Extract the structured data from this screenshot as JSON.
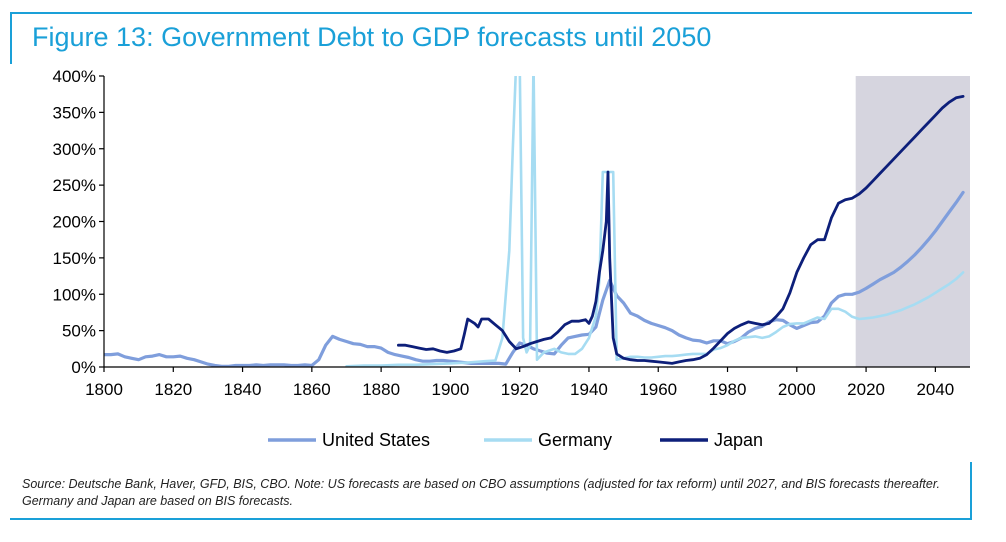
{
  "title": "Figure 13: Government Debt to GDP forecasts until 2050",
  "source_note": "Source: Deutsche Bank, Haver, GFD, BIS, CBO. Note: US forecasts are based on CBO assumptions (adjusted for tax reform) until 2027, and BIS forecasts thereafter. Germany and Japan are based on BIS forecasts.",
  "colors": {
    "accent": "#1aa0d8",
    "united_states": "#7f9edc",
    "germany": "#a6dcf2",
    "japan": "#0d1f7a",
    "forecast_shade": "#d6d5df"
  },
  "chart_data": {
    "type": "line",
    "title": "Figure 13: Government Debt to GDP forecasts until 2050",
    "xlabel": "",
    "ylabel": "",
    "xlim": [
      1800,
      2050
    ],
    "ylim": [
      0,
      400
    ],
    "x_ticks": [
      1800,
      1820,
      1840,
      1860,
      1880,
      1900,
      1920,
      1940,
      1960,
      1980,
      2000,
      2020,
      2040
    ],
    "y_ticks": [
      "0%",
      "50%",
      "100%",
      "150%",
      "200%",
      "250%",
      "300%",
      "350%",
      "400%"
    ],
    "y_tick_values": [
      0,
      50,
      100,
      150,
      200,
      250,
      300,
      350,
      400
    ],
    "grid": false,
    "legend_position": "bottom",
    "forecast_region": [
      2017,
      2050
    ],
    "series": [
      {
        "name": "United States",
        "color": "#7f9edc",
        "points": [
          [
            1800,
            17
          ],
          [
            1802,
            17
          ],
          [
            1804,
            18
          ],
          [
            1806,
            14
          ],
          [
            1808,
            12
          ],
          [
            1810,
            10
          ],
          [
            1812,
            14
          ],
          [
            1814,
            15
          ],
          [
            1816,
            17
          ],
          [
            1818,
            14
          ],
          [
            1820,
            14
          ],
          [
            1822,
            15
          ],
          [
            1824,
            12
          ],
          [
            1826,
            10
          ],
          [
            1828,
            7
          ],
          [
            1830,
            4
          ],
          [
            1832,
            2
          ],
          [
            1834,
            1
          ],
          [
            1836,
            1
          ],
          [
            1838,
            2
          ],
          [
            1840,
            2
          ],
          [
            1842,
            2
          ],
          [
            1844,
            3
          ],
          [
            1846,
            2
          ],
          [
            1848,
            3
          ],
          [
            1850,
            3
          ],
          [
            1852,
            3
          ],
          [
            1854,
            2
          ],
          [
            1856,
            2
          ],
          [
            1858,
            3
          ],
          [
            1860,
            2
          ],
          [
            1862,
            10
          ],
          [
            1864,
            30
          ],
          [
            1866,
            42
          ],
          [
            1868,
            38
          ],
          [
            1870,
            35
          ],
          [
            1872,
            32
          ],
          [
            1874,
            31
          ],
          [
            1876,
            28
          ],
          [
            1878,
            28
          ],
          [
            1880,
            26
          ],
          [
            1882,
            20
          ],
          [
            1884,
            17
          ],
          [
            1886,
            15
          ],
          [
            1888,
            13
          ],
          [
            1890,
            10
          ],
          [
            1892,
            8
          ],
          [
            1894,
            8
          ],
          [
            1896,
            9
          ],
          [
            1898,
            9
          ],
          [
            1900,
            8
          ],
          [
            1902,
            7
          ],
          [
            1904,
            6
          ],
          [
            1906,
            5
          ],
          [
            1908,
            5
          ],
          [
            1910,
            5
          ],
          [
            1912,
            5
          ],
          [
            1914,
            5
          ],
          [
            1916,
            4
          ],
          [
            1918,
            20
          ],
          [
            1920,
            33
          ],
          [
            1922,
            30
          ],
          [
            1924,
            25
          ],
          [
            1926,
            22
          ],
          [
            1928,
            19
          ],
          [
            1930,
            18
          ],
          [
            1932,
            30
          ],
          [
            1934,
            40
          ],
          [
            1936,
            42
          ],
          [
            1938,
            44
          ],
          [
            1940,
            45
          ],
          [
            1942,
            55
          ],
          [
            1944,
            92
          ],
          [
            1946,
            119
          ],
          [
            1948,
            98
          ],
          [
            1950,
            88
          ],
          [
            1952,
            74
          ],
          [
            1954,
            70
          ],
          [
            1956,
            64
          ],
          [
            1958,
            60
          ],
          [
            1960,
            57
          ],
          [
            1962,
            54
          ],
          [
            1964,
            50
          ],
          [
            1966,
            44
          ],
          [
            1968,
            40
          ],
          [
            1970,
            37
          ],
          [
            1972,
            36
          ],
          [
            1974,
            33
          ],
          [
            1976,
            36
          ],
          [
            1978,
            36
          ],
          [
            1980,
            32
          ],
          [
            1982,
            35
          ],
          [
            1984,
            40
          ],
          [
            1986,
            48
          ],
          [
            1988,
            53
          ],
          [
            1990,
            56
          ],
          [
            1992,
            62
          ],
          [
            1994,
            65
          ],
          [
            1996,
            64
          ],
          [
            1998,
            58
          ],
          [
            2000,
            53
          ],
          [
            2002,
            57
          ],
          [
            2004,
            61
          ],
          [
            2006,
            62
          ],
          [
            2008,
            70
          ],
          [
            2010,
            88
          ],
          [
            2012,
            97
          ],
          [
            2014,
            100
          ],
          [
            2016,
            100
          ],
          [
            2018,
            103
          ],
          [
            2020,
            108
          ],
          [
            2022,
            114
          ],
          [
            2024,
            120
          ],
          [
            2026,
            125
          ],
          [
            2028,
            130
          ],
          [
            2030,
            137
          ],
          [
            2032,
            145
          ],
          [
            2034,
            154
          ],
          [
            2036,
            164
          ],
          [
            2038,
            175
          ],
          [
            2040,
            187
          ],
          [
            2042,
            200
          ],
          [
            2044,
            213
          ],
          [
            2046,
            226
          ],
          [
            2048,
            240
          ]
        ]
      },
      {
        "name": "Germany",
        "color": "#a6dcf2",
        "points": [
          [
            1870,
            1
          ],
          [
            1875,
            2
          ],
          [
            1880,
            2
          ],
          [
            1885,
            3
          ],
          [
            1890,
            3
          ],
          [
            1895,
            4
          ],
          [
            1900,
            5
          ],
          [
            1905,
            6
          ],
          [
            1910,
            8
          ],
          [
            1913,
            9
          ],
          [
            1915,
            40
          ],
          [
            1917,
            160
          ],
          [
            1918,
            300
          ],
          [
            1919,
            420
          ],
          [
            1920,
            430
          ],
          [
            1921,
            40
          ],
          [
            1922,
            20
          ],
          [
            1923,
            30
          ],
          [
            1924,
            430
          ],
          [
            1925,
            10
          ],
          [
            1927,
            20
          ],
          [
            1930,
            25
          ],
          [
            1932,
            20
          ],
          [
            1934,
            18
          ],
          [
            1936,
            18
          ],
          [
            1938,
            25
          ],
          [
            1940,
            40
          ],
          [
            1942,
            70
          ],
          [
            1943,
            120
          ],
          [
            1944,
            268
          ],
          [
            1945,
            268
          ],
          [
            1946,
            268
          ],
          [
            1947,
            268
          ],
          [
            1948,
            10
          ],
          [
            1950,
            12
          ],
          [
            1952,
            14
          ],
          [
            1954,
            14
          ],
          [
            1956,
            13
          ],
          [
            1958,
            13
          ],
          [
            1960,
            14
          ],
          [
            1962,
            15
          ],
          [
            1964,
            15
          ],
          [
            1966,
            16
          ],
          [
            1968,
            17
          ],
          [
            1970,
            18
          ],
          [
            1972,
            18
          ],
          [
            1974,
            18
          ],
          [
            1976,
            24
          ],
          [
            1978,
            26
          ],
          [
            1980,
            30
          ],
          [
            1982,
            36
          ],
          [
            1984,
            40
          ],
          [
            1986,
            41
          ],
          [
            1988,
            42
          ],
          [
            1990,
            40
          ],
          [
            1992,
            42
          ],
          [
            1994,
            48
          ],
          [
            1996,
            55
          ],
          [
            1998,
            59
          ],
          [
            2000,
            60
          ],
          [
            2002,
            60
          ],
          [
            2004,
            64
          ],
          [
            2006,
            68
          ],
          [
            2008,
            66
          ],
          [
            2010,
            80
          ],
          [
            2012,
            80
          ],
          [
            2014,
            76
          ],
          [
            2016,
            69
          ],
          [
            2018,
            66
          ],
          [
            2020,
            67
          ],
          [
            2022,
            68
          ],
          [
            2024,
            70
          ],
          [
            2026,
            72
          ],
          [
            2028,
            75
          ],
          [
            2030,
            78
          ],
          [
            2032,
            82
          ],
          [
            2034,
            86
          ],
          [
            2036,
            91
          ],
          [
            2038,
            96
          ],
          [
            2040,
            102
          ],
          [
            2042,
            108
          ],
          [
            2044,
            114
          ],
          [
            2046,
            121
          ],
          [
            2048,
            130
          ]
        ]
      },
      {
        "name": "Japan",
        "color": "#0d1f7a",
        "points": [
          [
            1885,
            30
          ],
          [
            1887,
            30
          ],
          [
            1889,
            28
          ],
          [
            1891,
            26
          ],
          [
            1893,
            24
          ],
          [
            1895,
            25
          ],
          [
            1897,
            22
          ],
          [
            1899,
            20
          ],
          [
            1901,
            22
          ],
          [
            1903,
            25
          ],
          [
            1904,
            45
          ],
          [
            1905,
            66
          ],
          [
            1907,
            60
          ],
          [
            1908,
            55
          ],
          [
            1909,
            66
          ],
          [
            1911,
            66
          ],
          [
            1913,
            58
          ],
          [
            1915,
            50
          ],
          [
            1917,
            35
          ],
          [
            1919,
            25
          ],
          [
            1921,
            28
          ],
          [
            1923,
            32
          ],
          [
            1925,
            35
          ],
          [
            1927,
            38
          ],
          [
            1929,
            40
          ],
          [
            1931,
            48
          ],
          [
            1933,
            58
          ],
          [
            1935,
            63
          ],
          [
            1937,
            63
          ],
          [
            1939,
            65
          ],
          [
            1940,
            60
          ],
          [
            1941,
            70
          ],
          [
            1942,
            90
          ],
          [
            1943,
            130
          ],
          [
            1944,
            160
          ],
          [
            1945,
            200
          ],
          [
            1945.5,
            268
          ],
          [
            1946,
            150
          ],
          [
            1947,
            40
          ],
          [
            1948,
            18
          ],
          [
            1950,
            12
          ],
          [
            1952,
            10
          ],
          [
            1954,
            9
          ],
          [
            1956,
            9
          ],
          [
            1958,
            8
          ],
          [
            1960,
            7
          ],
          [
            1962,
            6
          ],
          [
            1964,
            5
          ],
          [
            1966,
            7
          ],
          [
            1968,
            9
          ],
          [
            1970,
            10
          ],
          [
            1972,
            12
          ],
          [
            1974,
            17
          ],
          [
            1976,
            26
          ],
          [
            1978,
            36
          ],
          [
            1980,
            46
          ],
          [
            1982,
            53
          ],
          [
            1984,
            58
          ],
          [
            1986,
            62
          ],
          [
            1988,
            60
          ],
          [
            1990,
            58
          ],
          [
            1992,
            60
          ],
          [
            1994,
            69
          ],
          [
            1996,
            80
          ],
          [
            1998,
            102
          ],
          [
            2000,
            130
          ],
          [
            2002,
            150
          ],
          [
            2004,
            168
          ],
          [
            2006,
            175
          ],
          [
            2008,
            175
          ],
          [
            2010,
            205
          ],
          [
            2012,
            225
          ],
          [
            2014,
            230
          ],
          [
            2016,
            232
          ],
          [
            2018,
            238
          ],
          [
            2020,
            246
          ],
          [
            2022,
            256
          ],
          [
            2024,
            266
          ],
          [
            2026,
            276
          ],
          [
            2028,
            286
          ],
          [
            2030,
            296
          ],
          [
            2032,
            306
          ],
          [
            2034,
            316
          ],
          [
            2036,
            326
          ],
          [
            2038,
            336
          ],
          [
            2040,
            346
          ],
          [
            2042,
            356
          ],
          [
            2044,
            364
          ],
          [
            2046,
            370
          ],
          [
            2048,
            372
          ]
        ]
      }
    ]
  }
}
